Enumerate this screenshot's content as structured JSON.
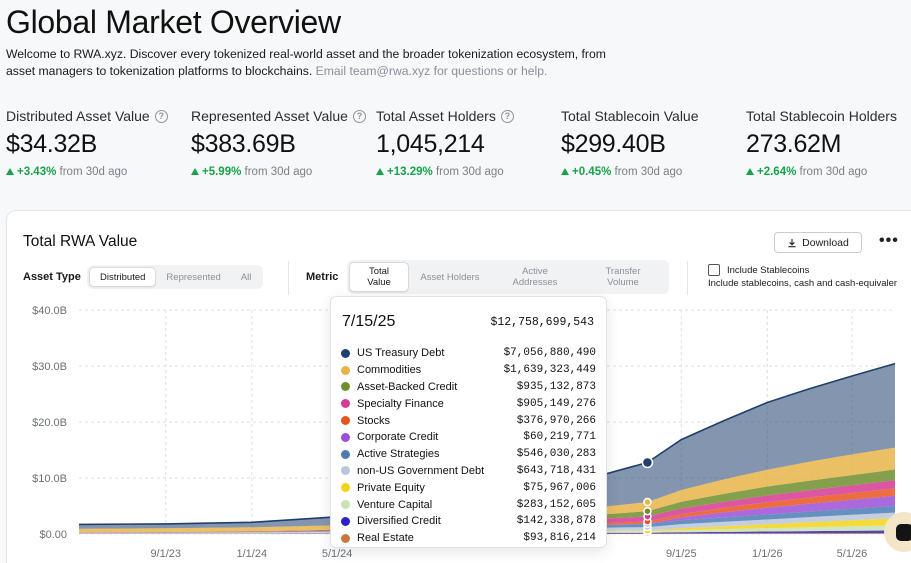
{
  "header": {
    "title": "Global Market Overview",
    "intro": "Welcome to RWA.xyz. Discover every tokenized real-world asset and the broader tokenization ecosystem, from asset managers to tokenization platforms to blockchains.",
    "intro_muted": "Email team@rwa.xyz for questions or help."
  },
  "stats": [
    {
      "label": "Distributed Asset Value",
      "value": "$34.32B",
      "change": "+3.43%",
      "suffix": "from 30d ago",
      "info": true
    },
    {
      "label": "Represented Asset Value",
      "value": "$383.69B",
      "change": "+5.99%",
      "suffix": "from 30d ago",
      "info": true
    },
    {
      "label": "Total Asset Holders",
      "value": "1,045,214",
      "change": "+13.29%",
      "suffix": "from 30d ago",
      "info": true
    },
    {
      "label": "Total Stablecoin Value",
      "value": "$299.40B",
      "change": "+0.45%",
      "suffix": "from 30d ago",
      "info": false
    },
    {
      "label": "Total Stablecoin Holders",
      "value": "273.62M",
      "change": "+2.64%",
      "suffix": "from 30d ago",
      "info": false
    }
  ],
  "card": {
    "title": "Total RWA Value",
    "download_label": "Download",
    "more_label": "•••",
    "asset_type_label": "Asset Type",
    "asset_type_options": [
      "Distributed",
      "Represented",
      "All"
    ],
    "metric_label": "Metric",
    "metric_options": [
      "Total Value",
      "Asset Holders",
      "Active Addresses",
      "Transfer Volume"
    ],
    "include_label": "Include Stablecoins",
    "include_sub": "Include stablecoins, cash and cash-equivaler"
  },
  "tooltip": {
    "date": "7/15/25",
    "total": "$12,758,699,543",
    "rows": [
      {
        "name": "US Treasury Debt",
        "value": "$7,056,880,490",
        "color": "#1f3f6e"
      },
      {
        "name": "Commodities",
        "value": "$1,639,323,449",
        "color": "#e7b448"
      },
      {
        "name": "Asset-Backed Credit",
        "value": "$935,132,873",
        "color": "#6f8f2e"
      },
      {
        "name": "Specialty Finance",
        "value": "$905,149,276",
        "color": "#d63a92"
      },
      {
        "name": "Stocks",
        "value": "$376,970,266",
        "color": "#e8541e"
      },
      {
        "name": "Corporate Credit",
        "value": "$60,219,771",
        "color": "#9b4fd6"
      },
      {
        "name": "Active Strategies",
        "value": "$546,030,283",
        "color": "#4a7cb4"
      },
      {
        "name": "non-US Government Debt",
        "value": "$643,718,431",
        "color": "#b8c7d9"
      },
      {
        "name": "Private Equity",
        "value": "$75,967,006",
        "color": "#f2d31b"
      },
      {
        "name": "Venture Capital",
        "value": "$283,152,605",
        "color": "#c8e3b0"
      },
      {
        "name": "Diversified Credit",
        "value": "$142,338,878",
        "color": "#2a22c7"
      },
      {
        "name": "Real Estate",
        "value": "$93,816,214",
        "color": "#c8783c"
      }
    ]
  },
  "chart_data": {
    "type": "area",
    "title": "Total RWA Value",
    "y_ticks": [
      "$0.00",
      "$10.0B",
      "$20.0B",
      "$30.0B",
      "$40.0B"
    ],
    "x_ticks": [
      "9/1/23",
      "1/1/24",
      "5/1/24",
      "9/1/25",
      "1/1/26",
      "5/1/26"
    ],
    "ylim": [
      0,
      40
    ],
    "y_unit": "billions USD",
    "grid": true,
    "x": [
      "2023-05-01",
      "2023-09-01",
      "2024-01-01",
      "2024-05-01",
      "2024-09-01",
      "2025-01-01",
      "2025-05-01",
      "2025-07-15",
      "2025-09-01",
      "2025-11-01",
      "2026-01-01",
      "2026-03-01",
      "2026-05-01",
      "2026-07-01"
    ],
    "series": [
      {
        "name": "Real Estate",
        "color": "#c8783c",
        "values": [
          0.05,
          0.05,
          0.05,
          0.06,
          0.07,
          0.08,
          0.09,
          0.09,
          0.11,
          0.12,
          0.14,
          0.16,
          0.17,
          0.18
        ]
      },
      {
        "name": "Diversified Credit",
        "color": "#2a22c7",
        "values": [
          0.02,
          0.02,
          0.03,
          0.04,
          0.06,
          0.09,
          0.12,
          0.14,
          0.2,
          0.25,
          0.3,
          0.35,
          0.4,
          0.45
        ]
      },
      {
        "name": "Venture Capital",
        "color": "#c8e3b0",
        "values": [
          0.03,
          0.04,
          0.05,
          0.08,
          0.12,
          0.18,
          0.25,
          0.28,
          0.4,
          0.5,
          0.6,
          0.7,
          0.8,
          0.9
        ]
      },
      {
        "name": "Private Equity",
        "color": "#f2d31b",
        "values": [
          0.01,
          0.01,
          0.02,
          0.03,
          0.04,
          0.06,
          0.07,
          0.08,
          0.3,
          0.5,
          0.7,
          0.9,
          1.1,
          1.3
        ]
      },
      {
        "name": "non-US Government Debt",
        "color": "#b8c7d9",
        "values": [
          0.1,
          0.12,
          0.15,
          0.2,
          0.3,
          0.45,
          0.6,
          0.64,
          0.75,
          0.8,
          0.85,
          0.9,
          0.95,
          1.0
        ]
      },
      {
        "name": "Active Strategies",
        "color": "#4a7cb4",
        "values": [
          0.02,
          0.02,
          0.03,
          0.05,
          0.1,
          0.2,
          0.4,
          0.55,
          0.7,
          0.8,
          0.9,
          1.0,
          1.1,
          1.2
        ]
      },
      {
        "name": "Corporate Credit",
        "color": "#9b4fd6",
        "values": [
          0.01,
          0.01,
          0.01,
          0.02,
          0.03,
          0.04,
          0.05,
          0.06,
          0.5,
          0.9,
          1.2,
          1.4,
          1.6,
          1.8
        ]
      },
      {
        "name": "Stocks",
        "color": "#e8541e",
        "values": [
          0.01,
          0.01,
          0.02,
          0.05,
          0.1,
          0.2,
          0.3,
          0.38,
          0.6,
          0.8,
          1.0,
          1.1,
          1.2,
          1.3
        ]
      },
      {
        "name": "Specialty Finance",
        "color": "#d63a92",
        "values": [
          0.05,
          0.06,
          0.08,
          0.15,
          0.3,
          0.5,
          0.8,
          0.91,
          1.0,
          1.1,
          1.2,
          1.3,
          1.4,
          1.5
        ]
      },
      {
        "name": "Asset-Backed Credit",
        "color": "#6f8f2e",
        "values": [
          0.02,
          0.02,
          0.05,
          0.1,
          0.2,
          0.4,
          0.7,
          0.94,
          1.2,
          1.4,
          1.6,
          1.7,
          1.8,
          1.9
        ]
      },
      {
        "name": "Commodities",
        "color": "#e7b448",
        "values": [
          0.6,
          0.65,
          0.7,
          0.8,
          0.9,
          1.0,
          1.3,
          1.64,
          2.1,
          2.6,
          3.0,
          3.4,
          3.7,
          3.9
        ]
      },
      {
        "name": "US Treasury Debt",
        "color": "#1f3f6e",
        "values": [
          0.8,
          0.8,
          0.9,
          1.5,
          2.2,
          3.5,
          5.5,
          7.06,
          9.0,
          10.5,
          12.0,
          13.0,
          14.0,
          15.0
        ]
      }
    ],
    "hover_index": 7
  }
}
